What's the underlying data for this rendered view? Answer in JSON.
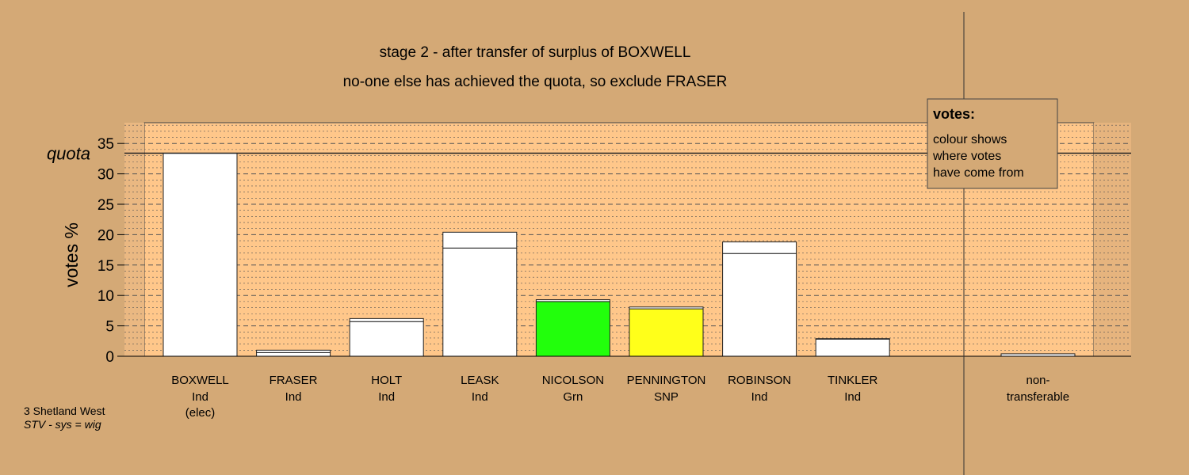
{
  "colors": {
    "background": "#d4a976",
    "plot_band": "#ffc78a",
    "elected_white": "#ffffff",
    "green": "#22ff0c",
    "yellow": "#ffff1a",
    "line": "#333333"
  },
  "footer": {
    "line1": "3 Shetland West",
    "line2": "STV - sys = wig"
  },
  "legend": {
    "title": "votes:",
    "lines": [
      "colour shows",
      "where votes",
      "have come from"
    ]
  },
  "chart_data": {
    "type": "bar",
    "title": "stage 2 - after transfer of surplus of BOXWELL",
    "subtitle": "no-one else has achieved the quota, so exclude FRASER",
    "ylabel": "votes %",
    "ylim": [
      0,
      38.5
    ],
    "yticks": [
      0,
      5,
      10,
      15,
      20,
      25,
      30,
      35
    ],
    "quota": 33.4,
    "quota_label": "quota",
    "grid": true,
    "legend_position": "top-right",
    "candidates": [
      {
        "name": "BOXWELL",
        "party": "Ind",
        "note": "(elec)",
        "segments": [
          {
            "value": 33.4,
            "color": "#ffffff"
          }
        ]
      },
      {
        "name": "FRASER",
        "party": "Ind",
        "note": "",
        "segments": [
          {
            "value": 0.6,
            "color": "#ffffff"
          },
          {
            "value": 0.4,
            "color": "#ffffff"
          }
        ]
      },
      {
        "name": "HOLT",
        "party": "Ind",
        "note": "",
        "segments": [
          {
            "value": 5.7,
            "color": "#ffffff"
          },
          {
            "value": 0.5,
            "color": "#ffffff"
          }
        ]
      },
      {
        "name": "LEASK",
        "party": "Ind",
        "note": "",
        "segments": [
          {
            "value": 17.8,
            "color": "#ffffff"
          },
          {
            "value": 2.6,
            "color": "#ffffff"
          }
        ]
      },
      {
        "name": "NICOLSON",
        "party": "Grn",
        "note": "",
        "segments": [
          {
            "value": 9.0,
            "color": "#22ff0c"
          },
          {
            "value": 0.3,
            "color": "#ffffff"
          }
        ]
      },
      {
        "name": "PENNINGTON",
        "party": "SNP",
        "note": "",
        "segments": [
          {
            "value": 7.8,
            "color": "#ffff1a"
          },
          {
            "value": 0.3,
            "color": "#ffffff"
          }
        ]
      },
      {
        "name": "ROBINSON",
        "party": "Ind",
        "note": "",
        "segments": [
          {
            "value": 16.9,
            "color": "#ffffff"
          },
          {
            "value": 1.9,
            "color": "#ffffff"
          }
        ]
      },
      {
        "name": "TINKLER",
        "party": "Ind",
        "note": "",
        "segments": [
          {
            "value": 2.8,
            "color": "#ffffff"
          },
          {
            "value": 0.1,
            "color": "#ffffff"
          }
        ]
      }
    ],
    "nontransferable": {
      "name": "non-",
      "name2": "transferable",
      "segments": [
        {
          "value": 0.4,
          "color": "#ffffff"
        }
      ]
    }
  }
}
